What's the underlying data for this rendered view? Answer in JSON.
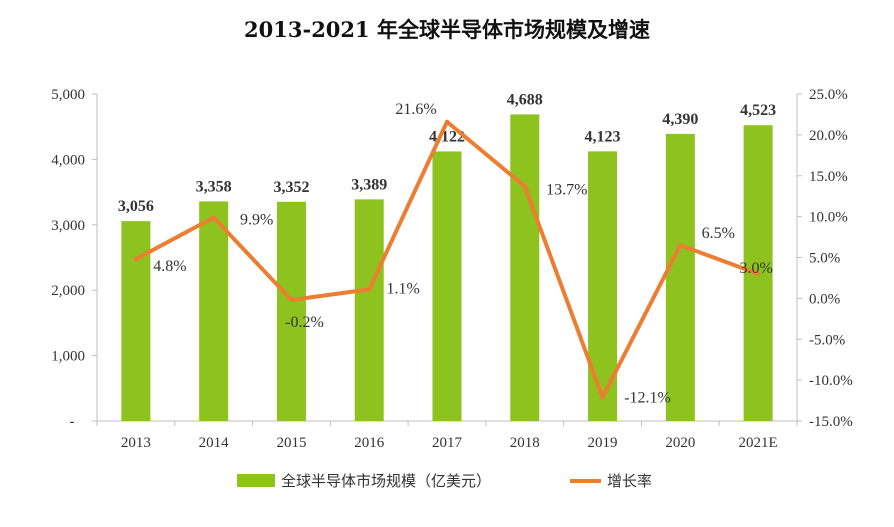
{
  "chart_data": {
    "type": "bar",
    "title": "2013-2021 年全球半导体市场规模及增速",
    "categories": [
      "2013",
      "2014",
      "2015",
      "2016",
      "2017",
      "2018",
      "2019",
      "2020",
      "2021E"
    ],
    "series": [
      {
        "name": "全球半导体市场规模（亿美元）",
        "type": "bar",
        "axis": "left",
        "values": [
          3056,
          3358,
          3352,
          3389,
          4122,
          4688,
          4123,
          4390,
          4523
        ],
        "labels": [
          "3,056",
          "3,358",
          "3,352",
          "3,389",
          "4,122",
          "4,688",
          "4,123",
          "4,390",
          "4,523"
        ],
        "color": "#8dc21f"
      },
      {
        "name": "增长率",
        "type": "line",
        "axis": "right",
        "values": [
          4.8,
          9.9,
          -0.2,
          1.1,
          21.6,
          13.7,
          -12.1,
          6.5,
          3.0
        ],
        "labels": [
          "4.8%",
          "9.9%",
          "-0.2%",
          "1.1%",
          "21.6%",
          "13.7%",
          "-12.1%",
          "6.5%",
          "3.0%"
        ],
        "color": "#ed7d31"
      }
    ],
    "y_left": {
      "ylim": [
        0,
        5000
      ],
      "ticks": [
        0,
        1000,
        2000,
        3000,
        4000,
        5000
      ],
      "tick_labels": [
        "-",
        "1,000",
        "2,000",
        "3,000",
        "4,000",
        "5,000"
      ]
    },
    "y_right": {
      "ylim": [
        -15,
        25
      ],
      "ticks": [
        -15,
        -10,
        -5,
        0,
        5,
        10,
        15,
        20,
        25
      ],
      "tick_labels": [
        "-15.0%",
        "-10.0%",
        "-5.0%",
        "0.0%",
        "5.0%",
        "10.0%",
        "15.0%",
        "20.0%",
        "25.0%"
      ]
    },
    "grid": false,
    "legend_position": "bottom"
  }
}
